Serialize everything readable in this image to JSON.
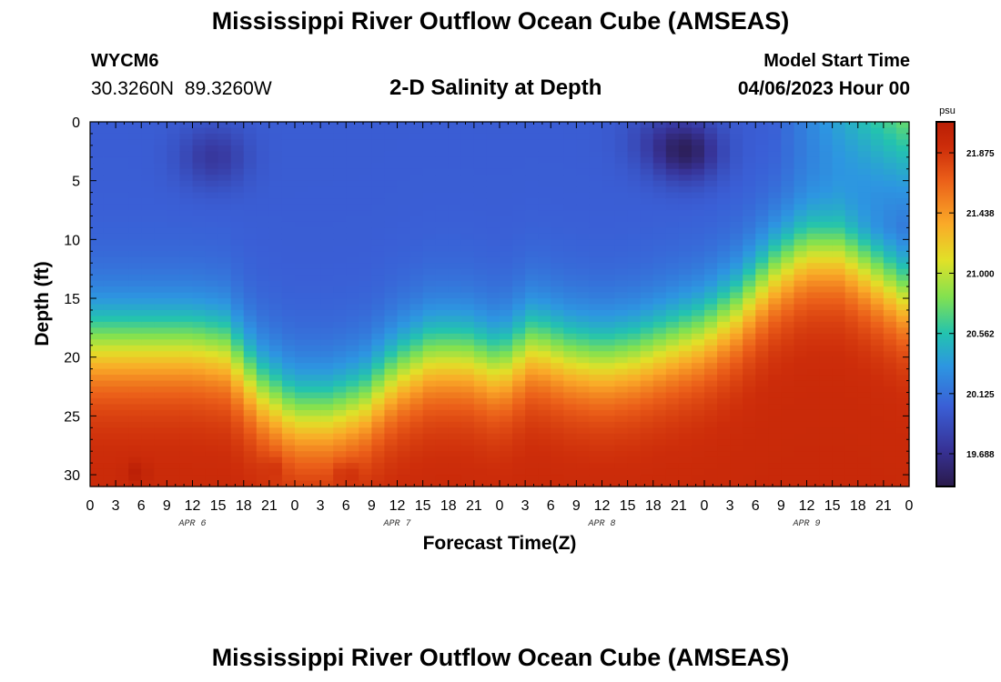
{
  "header": {
    "title": "Mississippi River Outflow Ocean Cube (AMSEAS)",
    "station_id": "WYCM6",
    "coordinates": "30.3260N 89.3260W",
    "subtitle": "2-D Salinity at Depth",
    "model_start_label": "Model Start Time",
    "model_start_value": "04/06/2023 Hour 00"
  },
  "footer": {
    "title": "Mississippi River Outflow Ocean Cube (AMSEAS)"
  },
  "colors": {
    "low": "#2a1a4a",
    "mid_blue": "#3a5fd6",
    "mid_green": "#8ee04a",
    "high": "#c72a08"
  },
  "chart_data": {
    "type": "heatmap",
    "xlabel": "Forecast Time(Z)",
    "ylabel": "Depth (ft)",
    "xlim_hours": [
      0,
      96
    ],
    "ylim_ft": [
      0,
      31
    ],
    "x_tick_labels": [
      "0",
      "3",
      "6",
      "9",
      "12",
      "15",
      "18",
      "21",
      "0",
      "3",
      "6",
      "9",
      "12",
      "15",
      "18",
      "21",
      "0",
      "3",
      "6",
      "9",
      "12",
      "15",
      "18",
      "21",
      "0",
      "3",
      "6",
      "9",
      "12",
      "15",
      "18",
      "21",
      "0"
    ],
    "y_ticks": [
      0,
      5,
      10,
      15,
      20,
      25,
      30
    ],
    "day_labels": [
      {
        "label": "APR 6",
        "hour": 12
      },
      {
        "label": "APR 7",
        "hour": 36
      },
      {
        "label": "APR 8",
        "hour": 60
      },
      {
        "label": "APR 9",
        "hour": 84
      }
    ],
    "colorbar": {
      "unit": "psu",
      "range": [
        19.45,
        22.1
      ],
      "tick_labels": [
        "21.875",
        "21.438",
        "21.000",
        "20.562",
        "20.125",
        "19.688"
      ],
      "tick_values": [
        21.875,
        21.438,
        21.0,
        20.562,
        20.125,
        19.688
      ]
    },
    "halocline_depth_ft": {
      "hours": [
        0,
        6,
        12,
        16,
        20,
        24,
        28,
        32,
        36,
        40,
        44,
        48,
        52,
        56,
        60,
        64,
        68,
        72,
        76,
        80,
        84,
        88,
        92,
        96
      ],
      "depth": [
        19,
        19,
        19,
        19.5,
        23,
        25,
        25,
        24,
        21.5,
        20,
        20,
        21,
        19,
        20,
        20.5,
        20,
        19,
        18,
        16,
        13,
        11,
        11,
        13,
        15
      ]
    },
    "fresh_surface_low": [
      {
        "hour": 14.5,
        "depth_ft": 3,
        "value": 19.75
      },
      {
        "hour": 66,
        "depth_ft": 1.5,
        "value": 19.9
      },
      {
        "hour": 70,
        "depth_ft": 2.5,
        "value": 19.55
      }
    ],
    "bottom_high": [
      {
        "hour": 5.5,
        "depth_ft": 29.8,
        "value": 22.1
      },
      {
        "hour": 21.5,
        "depth_ft": 29.3,
        "value": 22.05
      },
      {
        "hour": 30,
        "depth_ft": 29.8,
        "value": 22.1
      }
    ],
    "surface_value": 20.02,
    "bottom_value": 21.96
  }
}
